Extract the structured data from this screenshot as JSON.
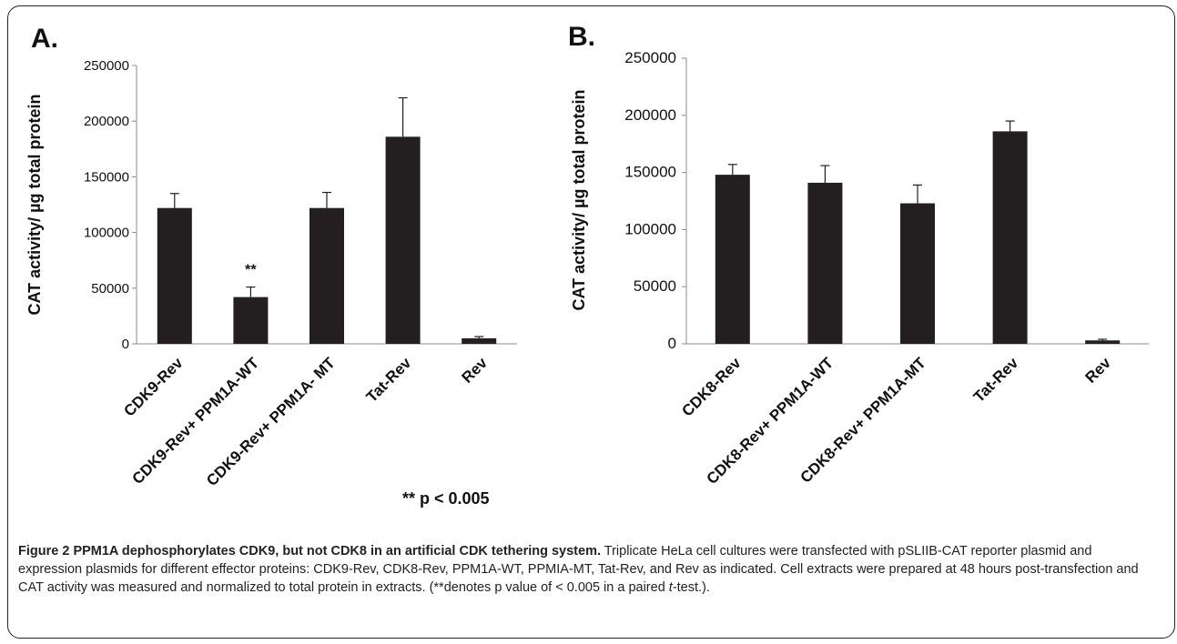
{
  "chart_data": [
    {
      "type": "bar",
      "panel_label": "A.",
      "ylabel": "CAT activity/ µg total protein",
      "categories": [
        "CDK9-Rev",
        "CDK9-Rev+ PPM1A-WT",
        "CDK9-Rev+ PPM1A- MT",
        "Tat-Rev",
        "Rev"
      ],
      "values": [
        122000,
        42000,
        122000,
        186000,
        5000
      ],
      "errors": [
        13000,
        9000,
        14000,
        35000,
        1500
      ],
      "bar_annotations": [
        "",
        "**",
        "",
        "",
        ""
      ],
      "ylim": [
        0,
        250000
      ],
      "yticks": [
        0,
        50000,
        100000,
        150000,
        200000,
        250000
      ],
      "footnote": "** p < 0.005",
      "color": "#231f20"
    },
    {
      "type": "bar",
      "panel_label": "B.",
      "ylabel": "CAT activity/ µg total protein",
      "categories": [
        "CDK8-Rev",
        "CDK8-Rev+ PPM1A-WT",
        "CDK8-Rev+ PPM1A-MT",
        "Tat-Rev",
        "Rev"
      ],
      "values": [
        148000,
        141000,
        123000,
        186000,
        3000
      ],
      "errors": [
        9000,
        15000,
        16000,
        9000,
        1000
      ],
      "ylim": [
        0,
        250000
      ],
      "yticks": [
        0,
        50000,
        100000,
        150000,
        200000,
        250000
      ],
      "color": "#231f20"
    }
  ],
  "caption": {
    "figure_label": "Figure 2",
    "title": "PPM1A dephosphorylates CDK9, but not CDK8 in an artificial CDK tethering system.",
    "text_1": "Triplicate HeLa cell cultures were transfected with pSLIIB-CAT reporter plasmid and expression plasmids for different effector proteins: CDK9-Rev, CDK8-Rev, PPM1A-WT, PPMIA-MT, Tat-Rev, and Rev as indicated. Cell extracts were prepared at 48 hours post-transfection and CAT activity was measured and normalized to total protein in extracts. (**denotes p value of < 0.005 in a paired ",
    "text_italic": "t",
    "text_2": "-test.)."
  }
}
